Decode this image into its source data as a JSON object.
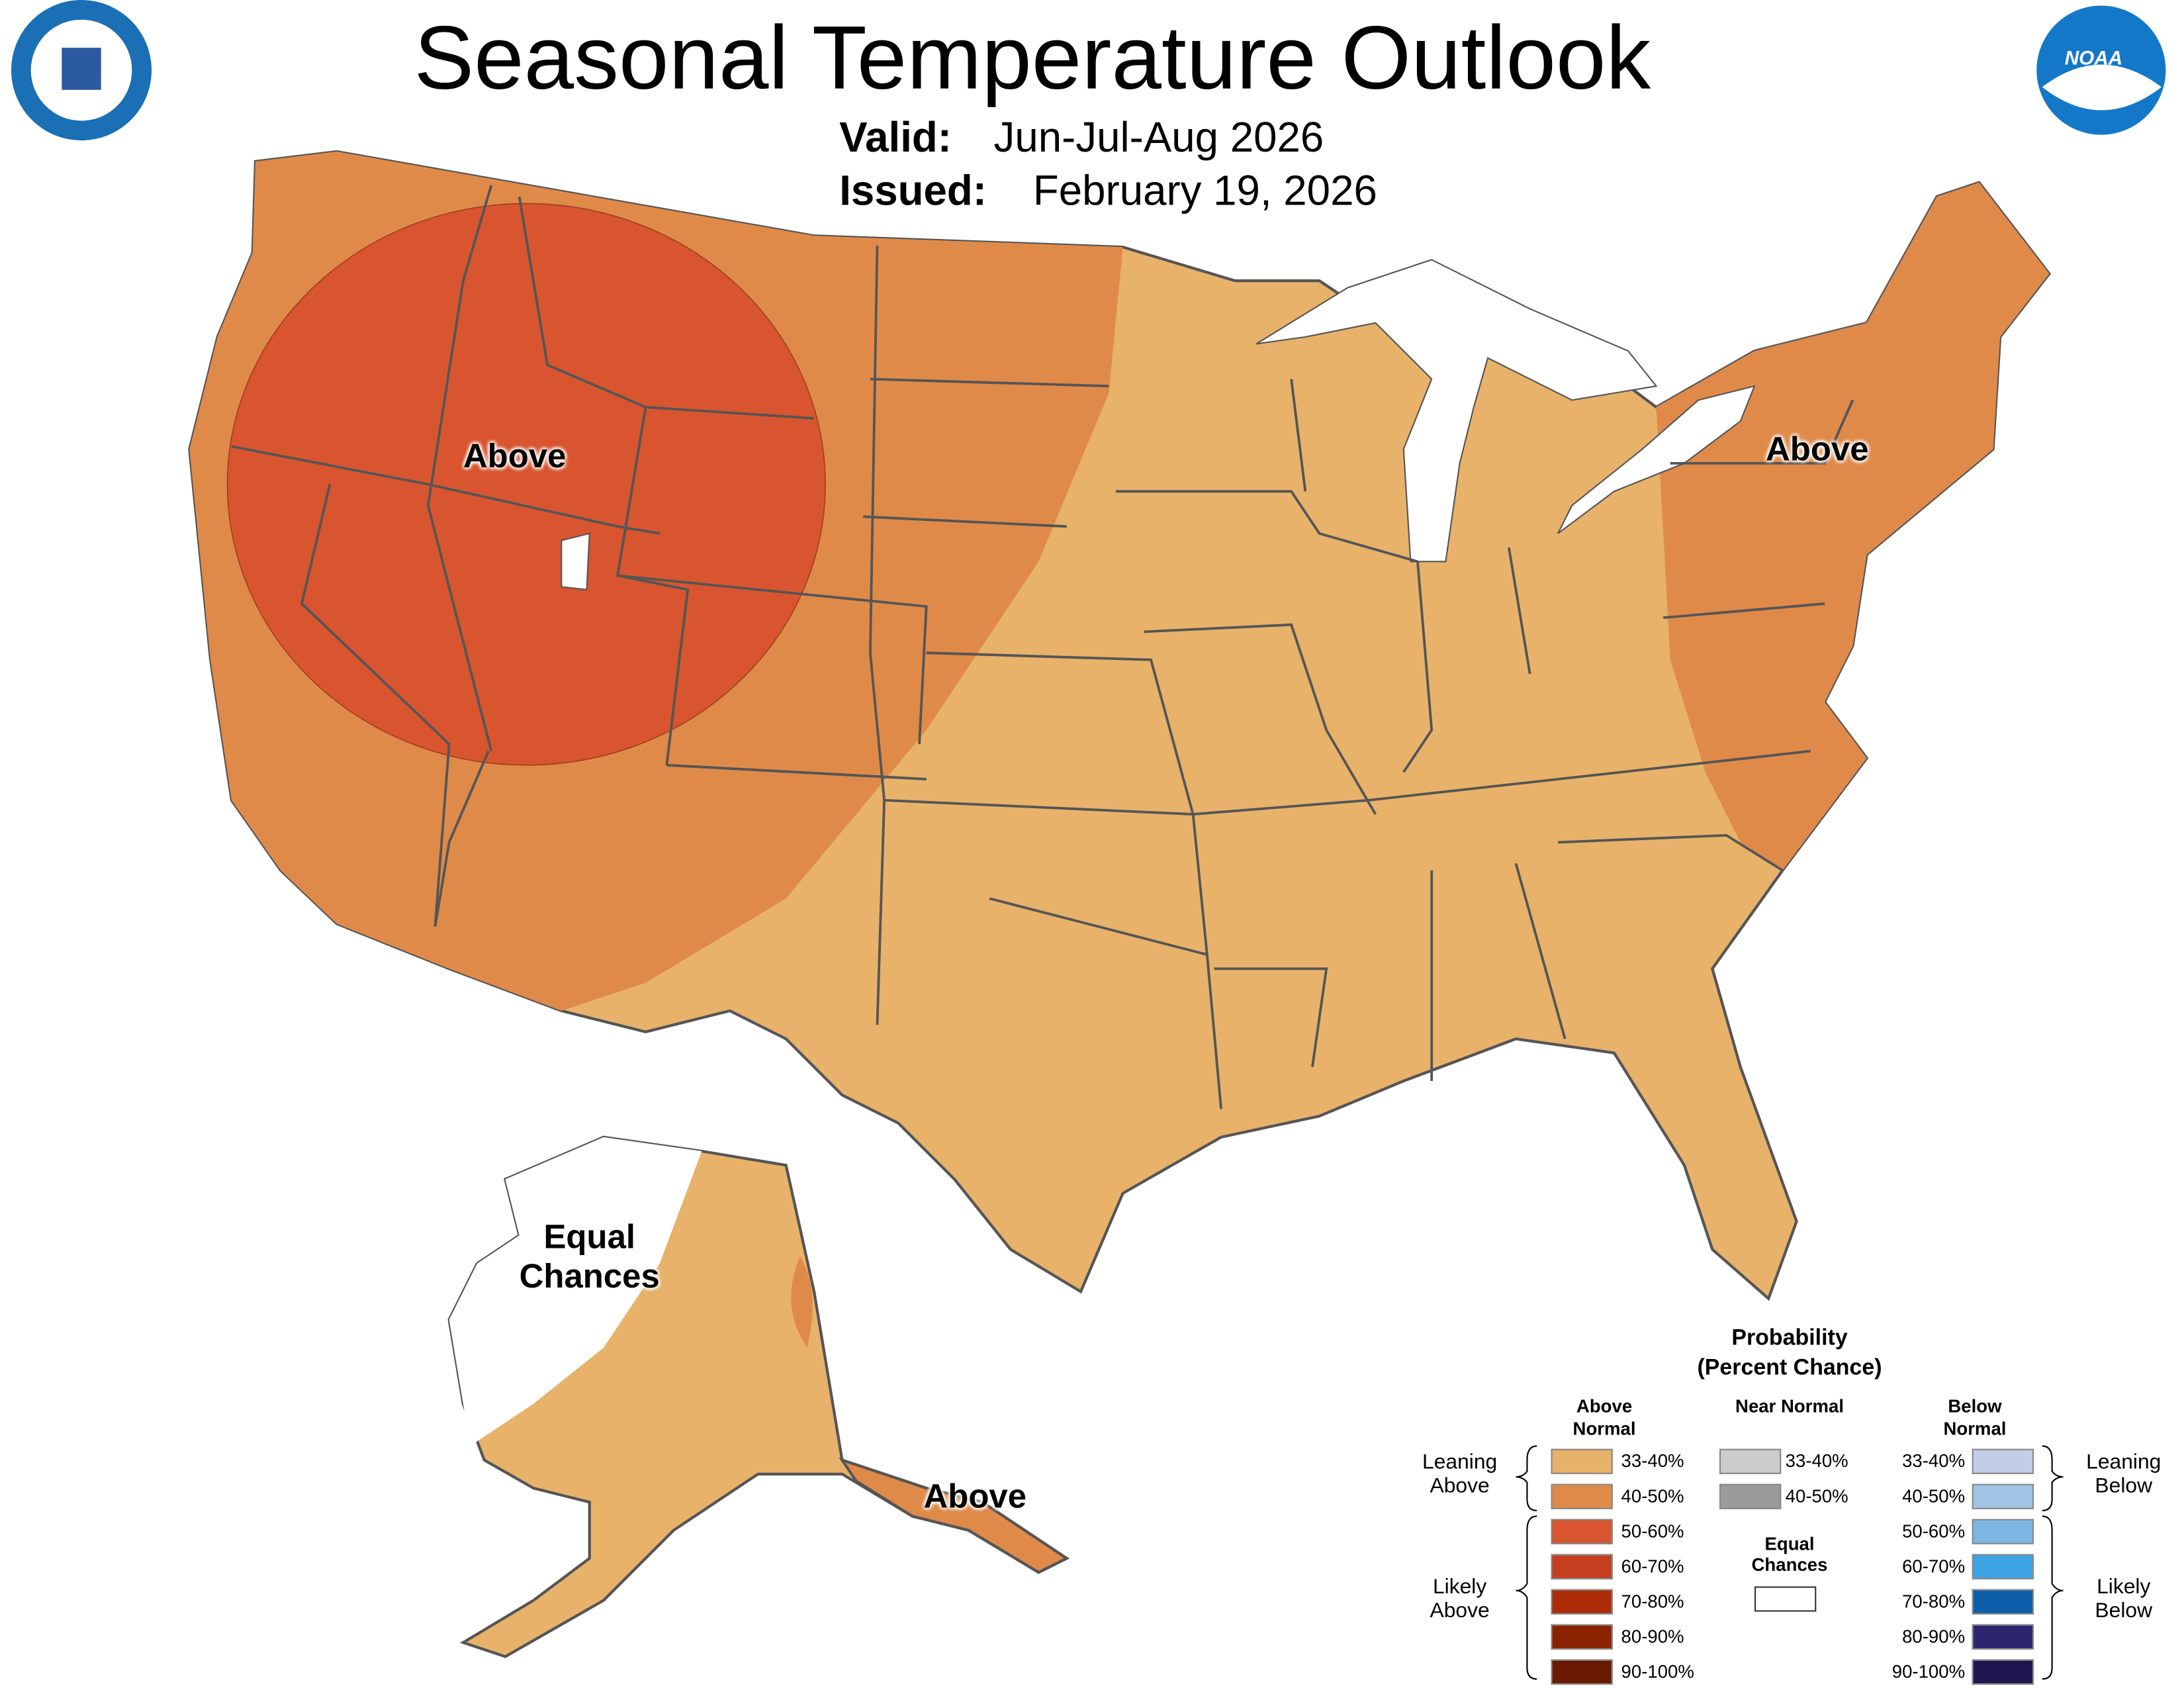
{
  "header": {
    "title": "Seasonal Temperature Outlook",
    "valid": {
      "label": "Valid:",
      "value": "Jun-Jul-Aug 2026"
    },
    "issued": {
      "label": "Issued:",
      "value": "February 19, 2026"
    }
  },
  "logos": {
    "noaa": "NOAA"
  },
  "map_labels": [
    "Above",
    "Above",
    "Equal Chances",
    "Above"
  ],
  "legend": {
    "title": "Probability",
    "subtitle": "(Percent Chance)",
    "columns": [
      {
        "heading": "Above Normal",
        "items": [
          {
            "label": "33-40%",
            "color": "#e8b26a"
          },
          {
            "label": "40-50%",
            "color": "#e08a4a"
          },
          {
            "label": "50-60%",
            "color": "#d9552f"
          },
          {
            "label": "60-70%",
            "color": "#c63e20"
          },
          {
            "label": "70-80%",
            "color": "#ad2c08"
          },
          {
            "label": "80-90%",
            "color": "#8a2200"
          },
          {
            "label": "90-100%",
            "color": "#6a1a00"
          }
        ]
      },
      {
        "heading": "Near Normal",
        "items": [
          {
            "label": "33-40%",
            "color": "#cccccc"
          },
          {
            "label": "40-50%",
            "color": "#9b9b9b"
          }
        ]
      },
      {
        "heading": "Below Normal",
        "items": [
          {
            "label": "33-40%",
            "color": "#c4cde8"
          },
          {
            "label": "40-50%",
            "color": "#a2c5e5"
          },
          {
            "label": "50-60%",
            "color": "#7bb6e4"
          },
          {
            "label": "60-70%",
            "color": "#3ea3e2"
          },
          {
            "label": "70-80%",
            "color": "#0d5ea8"
          },
          {
            "label": "80-90%",
            "color": "#2e2570"
          },
          {
            "label": "90-100%",
            "color": "#1e1650"
          }
        ]
      }
    ],
    "equal_chances": "Equal Chances",
    "brackets": [
      "Leaning Above",
      "Likely Above",
      "Leaning Below",
      "Likely Below"
    ]
  }
}
